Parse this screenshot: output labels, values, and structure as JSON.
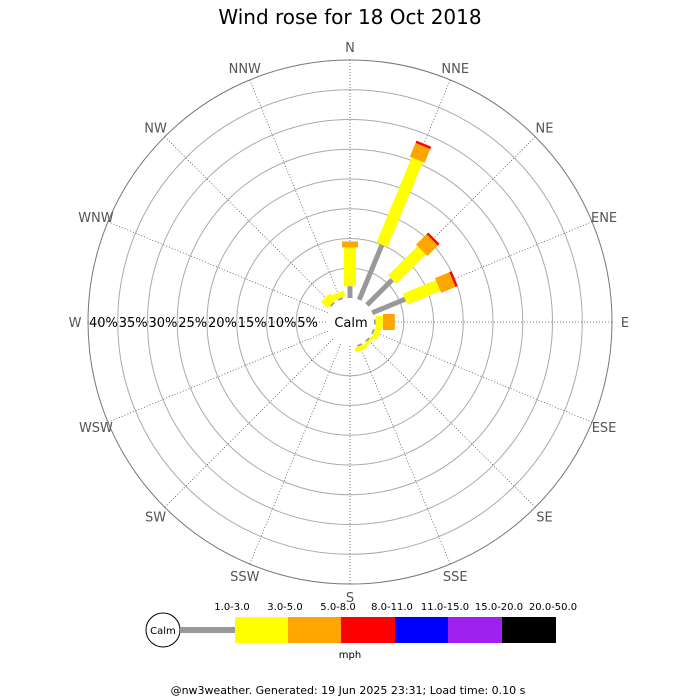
{
  "chart_data": {
    "type": "wind-rose",
    "title": "Wind rose for 18 Oct 2018",
    "directions": [
      "N",
      "NNE",
      "NE",
      "ENE",
      "E",
      "ESE",
      "SE",
      "SSE",
      "S",
      "SSW",
      "SW",
      "WSW",
      "W",
      "WNW",
      "NW",
      "NNW"
    ],
    "radial_ticks": [
      "40%",
      "35%",
      "30%",
      "25%",
      "20%",
      "15%",
      "10%",
      "5%"
    ],
    "radial_max": 40,
    "calm_label": "Calm",
    "speed_bins": [
      {
        "label": "1.0-3.0",
        "color": "#999999"
      },
      {
        "label": "3.0-5.0",
        "color": "#ffff00"
      },
      {
        "label": "5.0-8.0",
        "color": "#ffa500"
      },
      {
        "label": "8.0-11.0",
        "color": "#ff0000"
      },
      {
        "label": "11.0-15.0",
        "color": "#0000ff"
      },
      {
        "label": "15.0-20.0",
        "color": "#a020f0"
      },
      {
        "label": "20.0-50.0",
        "color": "#000000"
      }
    ],
    "unit": "mph",
    "series": [
      {
        "direction": "N",
        "segments": [
          2.0,
          6.5,
          1.0
        ]
      },
      {
        "direction": "NNE",
        "segments": [
          10.0,
          15.5,
          2.5,
          0.4
        ]
      },
      {
        "direction": "NE",
        "segments": [
          6.0,
          7.0,
          2.5,
          0.4
        ]
      },
      {
        "direction": "ENE",
        "segments": [
          6.0,
          6.0,
          2.6,
          0.4
        ]
      },
      {
        "direction": "E",
        "segments": [
          0.3,
          1.2,
          2.0
        ]
      },
      {
        "direction": "ESE",
        "segments": [
          0.3,
          1.0
        ]
      },
      {
        "direction": "SE",
        "segments": [
          0.3,
          0.5
        ]
      },
      {
        "direction": "SSE",
        "segments": [
          0.3,
          0.8
        ]
      },
      {
        "direction": "S",
        "segments": []
      },
      {
        "direction": "SSW",
        "segments": []
      },
      {
        "direction": "SW",
        "segments": []
      },
      {
        "direction": "WSW",
        "segments": []
      },
      {
        "direction": "W",
        "segments": []
      },
      {
        "direction": "WNW",
        "segments": []
      },
      {
        "direction": "NW",
        "segments": [
          0.3,
          1.5
        ]
      },
      {
        "direction": "NNW",
        "segments": [
          0.3,
          1.0
        ]
      }
    ]
  },
  "footer": "@nw3weather. Generated: 19 Jun 2025 23:31; Load time: 0.10 s"
}
